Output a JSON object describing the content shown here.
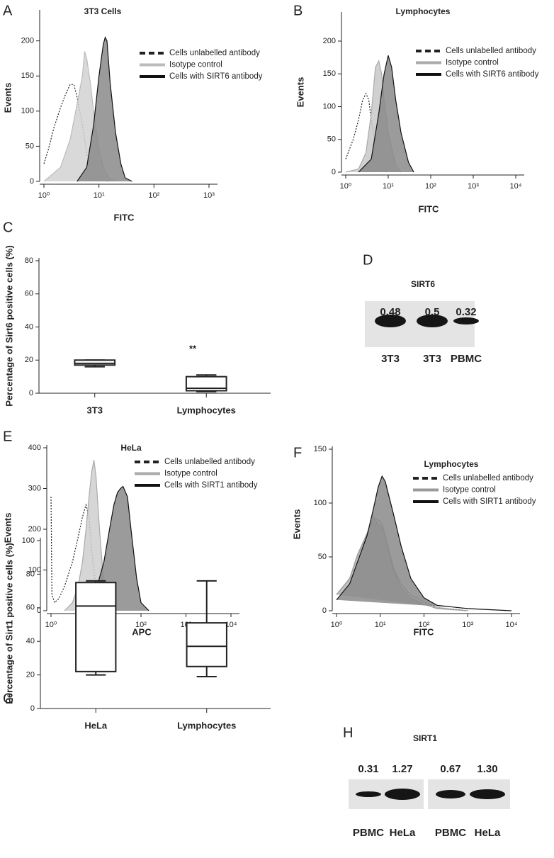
{
  "chart_data": [
    {
      "type": "area",
      "panel_label": "A",
      "title": "3T3 Cells",
      "x_label": "FITC",
      "y_label": "Events",
      "xlog": true,
      "xlim": [
        1,
        1000
      ],
      "ylim": [
        0,
        240
      ],
      "xticks": [
        {
          "value": 1,
          "label": "10⁰"
        },
        {
          "value": 10,
          "label": "10¹"
        },
        {
          "value": 100,
          "label": "10²"
        },
        {
          "value": 1000,
          "label": "10³"
        }
      ],
      "yticks": [
        0,
        50,
        100,
        150,
        200
      ],
      "series": [
        {
          "name": "Cells unlabelled antibody",
          "style": "dotted",
          "color": "#222",
          "edge_color": "#222",
          "x": [
            1,
            1.2,
            1.5,
            2,
            2.5,
            3,
            3.5,
            4,
            5,
            6,
            7,
            8,
            10,
            15
          ],
          "values": [
            25,
            45,
            75,
            105,
            125,
            138,
            138,
            120,
            80,
            40,
            15,
            5,
            2,
            0
          ]
        },
        {
          "name": "Isotype control",
          "style": "filled",
          "color": "#d2d2d2",
          "edge_color": "#bbbbbb",
          "x": [
            1,
            2,
            3,
            4,
            5,
            5.5,
            6,
            7,
            8,
            10,
            12,
            15,
            20
          ],
          "values": [
            0,
            20,
            60,
            110,
            150,
            185,
            175,
            140,
            100,
            45,
            20,
            5,
            0
          ]
        },
        {
          "name": "Cells with SIRT6 antibody",
          "style": "filled",
          "color": "#8a8a8a",
          "edge_color": "#111",
          "x": [
            4,
            6,
            8,
            10,
            12,
            13,
            14,
            16,
            20,
            25,
            30,
            40
          ],
          "values": [
            0,
            20,
            80,
            150,
            195,
            205,
            200,
            140,
            70,
            25,
            5,
            0
          ]
        }
      ]
    },
    {
      "type": "area",
      "panel_label": "B",
      "title": "Lymphocytes",
      "x_label": "FITC",
      "y_label": "Events",
      "xlog": true,
      "xlim": [
        1,
        10000
      ],
      "ylim": [
        0,
        240
      ],
      "xticks": [
        {
          "value": 1,
          "label": "10⁰"
        },
        {
          "value": 10,
          "label": "10¹"
        },
        {
          "value": 100,
          "label": "10²"
        },
        {
          "value": 1000,
          "label": "10³"
        },
        {
          "value": 10000,
          "label": "10⁴"
        }
      ],
      "yticks": [
        0,
        50,
        100,
        150,
        200
      ],
      "series": [
        {
          "name": "Cells unlabelled antibody",
          "style": "dotted",
          "color": "#222",
          "edge_color": "#222",
          "x": [
            1,
            1.5,
            2,
            2.5,
            3,
            3.5,
            4,
            5,
            6,
            8,
            10
          ],
          "values": [
            20,
            50,
            80,
            110,
            120,
            110,
            80,
            40,
            15,
            3,
            0
          ]
        },
        {
          "name": "Isotype control",
          "style": "filled",
          "color": "#c8c8c8",
          "edge_color": "#aaaaaa",
          "x": [
            1,
            2,
            3,
            4,
            5,
            6,
            7,
            8,
            10,
            15,
            20
          ],
          "values": [
            0,
            5,
            30,
            90,
            160,
            170,
            150,
            110,
            60,
            10,
            0
          ]
        },
        {
          "name": "Cells with SIRT6 antibody",
          "style": "filled",
          "color": "#8a8a8a",
          "edge_color": "#111",
          "x": [
            2,
            4,
            6,
            8,
            10,
            12,
            15,
            20,
            30,
            40
          ],
          "values": [
            0,
            20,
            90,
            150,
            178,
            160,
            110,
            60,
            15,
            0
          ]
        }
      ]
    },
    {
      "type": "box",
      "panel_label": "C",
      "y_label": "Percentage of Sirt6 positive cells (%)",
      "annotation": "**",
      "categories": [
        "3T3",
        "Lymphocytes"
      ],
      "ylim": [
        0,
        80
      ],
      "yticks": [
        0,
        20,
        40,
        60,
        80
      ],
      "values": [
        {
          "min": 16,
          "q1": 17,
          "median": 18,
          "q3": 20,
          "max": 20
        },
        {
          "min": 1,
          "q1": 1.5,
          "median": 3,
          "q3": 10,
          "max": 11
        }
      ]
    },
    {
      "type": "area",
      "panel_label": "E",
      "title": "HeLa",
      "x_label": "APC",
      "y_label": "Events",
      "xlog": true,
      "xlim": [
        1,
        10000
      ],
      "ylim": [
        0,
        400
      ],
      "xticks": [
        {
          "value": 1,
          "label": "10⁰"
        },
        {
          "value": 10,
          "label": "10¹"
        },
        {
          "value": 100,
          "label": "10²"
        },
        {
          "value": 1000,
          "label": "10³"
        },
        {
          "value": 10000,
          "label": "10⁴"
        }
      ],
      "yticks": [
        0,
        100,
        200,
        300,
        400
      ],
      "series": [
        {
          "name": "Cells unlabelled antibody",
          "style": "dotted",
          "color": "#222",
          "edge_color": "#222",
          "x": [
            1,
            1.05,
            1.2,
            1.5,
            2,
            3,
            4,
            5,
            6,
            7,
            8,
            10,
            12,
            15
          ],
          "values": [
            280,
            40,
            20,
            30,
            60,
            120,
            180,
            230,
            260,
            230,
            150,
            50,
            10,
            0
          ]
        },
        {
          "name": "Isotype control",
          "style": "filled",
          "color": "#cfcfcf",
          "edge_color": "#aaaaaa",
          "x": [
            2,
            3,
            4,
            5,
            6,
            7,
            8,
            9,
            10,
            12,
            15,
            20
          ],
          "values": [
            0,
            20,
            60,
            120,
            200,
            280,
            340,
            370,
            330,
            200,
            60,
            0
          ]
        },
        {
          "name": "Cells with SIRT1 antibody",
          "style": "filled",
          "color": "#8a8a8a",
          "edge_color": "#111",
          "x": [
            5,
            8,
            10,
            15,
            20,
            25,
            30,
            35,
            40,
            50,
            60,
            80,
            100,
            150
          ],
          "values": [
            0,
            20,
            50,
            120,
            200,
            260,
            290,
            300,
            305,
            280,
            200,
            80,
            20,
            0
          ]
        }
      ]
    },
    {
      "type": "area",
      "panel_label": "F",
      "title": "Lymphocytes",
      "x_label": "FITC",
      "y_label": "Events",
      "xlog": true,
      "xlim": [
        1,
        10000
      ],
      "ylim": [
        0,
        150
      ],
      "xticks": [
        {
          "value": 1,
          "label": "10⁰"
        },
        {
          "value": 10,
          "label": "10¹"
        },
        {
          "value": 100,
          "label": "10²"
        },
        {
          "value": 1000,
          "label": "10³"
        },
        {
          "value": 10000,
          "label": "10⁴"
        }
      ],
      "yticks": [
        0,
        50,
        100,
        150
      ],
      "series": [
        {
          "name": "Cells unlabelled antibody",
          "style": "dotted",
          "color": "#222",
          "edge_color": "#222",
          "x": [
            1,
            2,
            3,
            5,
            7,
            9,
            11,
            13,
            15,
            20,
            30,
            50,
            100,
            200,
            1000
          ],
          "values": [
            15,
            30,
            50,
            70,
            85,
            85,
            80,
            70,
            60,
            40,
            25,
            15,
            8,
            3,
            0
          ]
        },
        {
          "name": "Isotype control",
          "style": "filled",
          "color": "#b5b5b5",
          "edge_color": "#999999",
          "x": [
            1,
            2,
            3,
            5,
            7,
            9,
            11,
            13,
            15,
            20,
            30,
            50,
            100,
            200,
            1000
          ],
          "values": [
            15,
            30,
            52,
            72,
            88,
            80,
            78,
            70,
            58,
            38,
            22,
            12,
            6,
            2,
            0
          ]
        },
        {
          "name": "Cells with SIRT1 antibody",
          "style": "filled",
          "color": "#8a8a8a",
          "edge_color": "#111",
          "x": [
            1,
            2,
            3,
            5,
            7,
            9,
            11,
            13,
            15,
            20,
            30,
            50,
            100,
            200,
            1000,
            10000
          ],
          "values": [
            10,
            25,
            45,
            70,
            95,
            115,
            125,
            120,
            110,
            90,
            60,
            30,
            12,
            5,
            2,
            0
          ]
        }
      ]
    },
    {
      "type": "box",
      "panel_label": "G",
      "y_label": "Percentage of Sirt1 positive cells (%)",
      "categories": [
        "HeLa",
        "Lymphocytes"
      ],
      "ylim": [
        0,
        100
      ],
      "yticks": [
        0,
        20,
        40,
        60,
        80,
        100
      ],
      "values": [
        {
          "min": 20,
          "q1": 22,
          "median": 61,
          "q3": 75,
          "max": 76
        },
        {
          "min": 19,
          "q1": 25,
          "median": 37,
          "q3": 51,
          "max": 76
        }
      ]
    }
  ],
  "blots": [
    {
      "panel_label": "D",
      "title": "SIRT6",
      "values": [
        0.48,
        0.5,
        0.32
      ],
      "lanes": [
        "3T3",
        "3T3",
        "PBMC"
      ]
    },
    {
      "panel_label": "H",
      "title": "SIRT1",
      "values": [
        0.31,
        1.27,
        0.67,
        1.3
      ],
      "value_labels": [
        "0.31",
        "1.27",
        "0.67",
        "1.30"
      ],
      "lanes": [
        "PBMC",
        "HeLa",
        "PBMC",
        "HeLa"
      ]
    }
  ]
}
